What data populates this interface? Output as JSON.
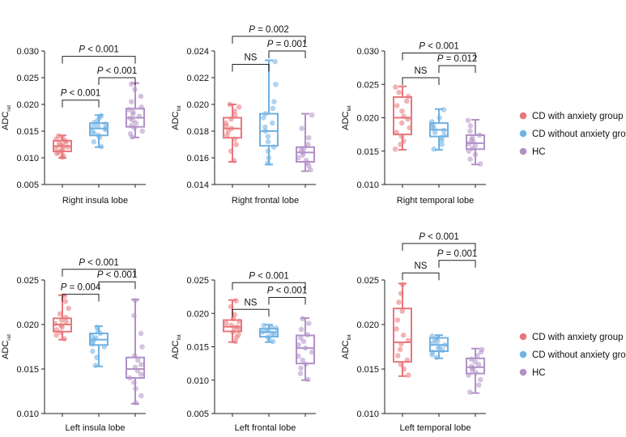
{
  "colors": {
    "anxiety": "#e8777a",
    "no_anxiety": "#6fb1e3",
    "hc": "#b291c6",
    "axis": "#222222"
  },
  "legend": {
    "entries": [
      {
        "label": "CD with anxiety group",
        "color": "#e8777a"
      },
      {
        "label": "CD without anxiety group",
        "color": "#6fb1e3"
      },
      {
        "label": "HC",
        "color": "#b291c6"
      }
    ]
  },
  "chart_data": [
    {
      "type": "box",
      "xlabel": "Right insula lobe",
      "ylabel": "ADC",
      "ylabel_sub": "ret",
      "ylim": [
        0.005,
        0.03
      ],
      "yticks": [
        "0.005",
        "0.010",
        "0.015",
        "0.020",
        "0.025",
        "0.030"
      ],
      "groups": [
        {
          "name": "CD with anxiety group",
          "min": 0.01,
          "q1": 0.0112,
          "median": 0.0122,
          "q3": 0.0132,
          "max": 0.0142,
          "points": [
            0.0101,
            0.0104,
            0.0108,
            0.011,
            0.0113,
            0.0115,
            0.0118,
            0.012,
            0.0122,
            0.0124,
            0.0127,
            0.013,
            0.0132,
            0.0135,
            0.0138,
            0.0141
          ]
        },
        {
          "name": "CD without anxiety group",
          "min": 0.012,
          "q1": 0.0142,
          "median": 0.0155,
          "q3": 0.0165,
          "max": 0.018,
          "points": [
            0.0121,
            0.013,
            0.0138,
            0.0142,
            0.0146,
            0.015,
            0.0153,
            0.0155,
            0.0158,
            0.016,
            0.0163,
            0.0166,
            0.017,
            0.0175,
            0.0179
          ]
        },
        {
          "name": "HC",
          "min": 0.0138,
          "q1": 0.0158,
          "median": 0.0175,
          "q3": 0.0192,
          "max": 0.024,
          "points": [
            0.0139,
            0.0145,
            0.015,
            0.0156,
            0.016,
            0.0165,
            0.017,
            0.0174,
            0.0178,
            0.0182,
            0.0186,
            0.019,
            0.0195,
            0.0205,
            0.0215,
            0.0228,
            0.0238
          ]
        }
      ],
      "brackets": [
        {
          "from": 0,
          "to": 1,
          "y": 0.0208,
          "label": "P < 0.001"
        },
        {
          "from": 1,
          "to": 2,
          "y": 0.025,
          "label": "P < 0.001"
        },
        {
          "from": 0,
          "to": 2,
          "y": 0.029,
          "label": "P < 0.001"
        }
      ]
    },
    {
      "type": "box",
      "xlabel": "Right frontal lobe",
      "ylabel": "ADC",
      "ylabel_sub": "fot",
      "ylim": [
        0.014,
        0.024
      ],
      "yticks": [
        "0.014",
        "0.016",
        "0.018",
        "0.020",
        "0.022",
        "0.024"
      ],
      "groups": [
        {
          "name": "CD with anxiety group",
          "min": 0.0157,
          "q1": 0.0175,
          "median": 0.0182,
          "q3": 0.019,
          "max": 0.02,
          "points": [
            0.0158,
            0.0165,
            0.017,
            0.0174,
            0.0177,
            0.018,
            0.0182,
            0.0184,
            0.0186,
            0.0189,
            0.0192,
            0.0195,
            0.0198,
            0.02
          ]
        },
        {
          "name": "CD without anxiety group",
          "min": 0.0155,
          "q1": 0.0169,
          "median": 0.018,
          "q3": 0.0193,
          "max": 0.0233,
          "points": [
            0.0156,
            0.016,
            0.0165,
            0.0168,
            0.0172,
            0.0176,
            0.018,
            0.0183,
            0.0186,
            0.019,
            0.0193,
            0.0197,
            0.0202,
            0.0215,
            0.0232
          ]
        },
        {
          "name": "HC",
          "min": 0.015,
          "q1": 0.0157,
          "median": 0.0164,
          "q3": 0.0168,
          "max": 0.0193,
          "points": [
            0.0151,
            0.0154,
            0.0156,
            0.0158,
            0.016,
            0.0162,
            0.0164,
            0.0166,
            0.0167,
            0.017,
            0.0175,
            0.0182,
            0.0192
          ]
        }
      ],
      "brackets": [
        {
          "from": 0,
          "to": 1,
          "y": 0.023,
          "label": "NS"
        },
        {
          "from": 1,
          "to": 2,
          "y": 0.024,
          "label": "P = 0.001"
        },
        {
          "from": 0,
          "to": 2,
          "y": 0.0251,
          "label": "P = 0.002"
        }
      ]
    },
    {
      "type": "box",
      "xlabel": "Right temporal lobe",
      "ylabel": "ADC",
      "ylabel_sub": "tet",
      "ylim": [
        0.01,
        0.03
      ],
      "yticks": [
        "0.010",
        "0.015",
        "0.020",
        "0.025",
        "0.030"
      ],
      "groups": [
        {
          "name": "CD with anxiety group",
          "min": 0.0152,
          "q1": 0.0175,
          "median": 0.02,
          "q3": 0.0231,
          "max": 0.0247,
          "points": [
            0.0153,
            0.016,
            0.0165,
            0.0172,
            0.0178,
            0.0185,
            0.0192,
            0.0198,
            0.0202,
            0.021,
            0.0218,
            0.0225,
            0.0232,
            0.0238,
            0.0246
          ]
        },
        {
          "name": "CD without anxiety group",
          "min": 0.0152,
          "q1": 0.0172,
          "median": 0.0182,
          "q3": 0.0192,
          "max": 0.0213,
          "points": [
            0.0153,
            0.016,
            0.0166,
            0.017,
            0.0174,
            0.0178,
            0.0181,
            0.0184,
            0.0187,
            0.019,
            0.0194,
            0.02,
            0.0212
          ]
        },
        {
          "name": "HC",
          "min": 0.013,
          "q1": 0.0153,
          "median": 0.0162,
          "q3": 0.0174,
          "max": 0.0197,
          "points": [
            0.0131,
            0.0138,
            0.0145,
            0.015,
            0.0154,
            0.0158,
            0.0161,
            0.0164,
            0.0167,
            0.017,
            0.0174,
            0.018,
            0.0188,
            0.0196
          ]
        }
      ],
      "brackets": [
        {
          "from": 0,
          "to": 1,
          "y": 0.026,
          "label": "NS"
        },
        {
          "from": 1,
          "to": 2,
          "y": 0.0278,
          "label": "P = 0.012"
        },
        {
          "from": 0,
          "to": 2,
          "y": 0.0297,
          "label": "P < 0.001"
        }
      ]
    },
    {
      "type": "box",
      "xlabel": "Left insula lobe",
      "ylabel": "ADC",
      "ylabel_sub": "ret",
      "ylim": [
        0.01,
        0.025
      ],
      "yticks": [
        "0.010",
        "0.015",
        "0.020",
        "0.025"
      ],
      "groups": [
        {
          "name": "CD with anxiety group",
          "min": 0.0183,
          "q1": 0.0192,
          "median": 0.02,
          "q3": 0.0207,
          "max": 0.0233,
          "points": [
            0.0184,
            0.0188,
            0.0191,
            0.0194,
            0.0197,
            0.0199,
            0.0201,
            0.0203,
            0.0205,
            0.0208,
            0.0212,
            0.0218,
            0.0226,
            0.0232
          ]
        },
        {
          "name": "CD without anxiety group",
          "min": 0.0153,
          "q1": 0.0177,
          "median": 0.0183,
          "q3": 0.019,
          "max": 0.0198,
          "points": [
            0.0154,
            0.0163,
            0.017,
            0.0175,
            0.0178,
            0.0181,
            0.0183,
            0.0185,
            0.0187,
            0.019,
            0.0193,
            0.0197
          ]
        },
        {
          "name": "HC",
          "min": 0.0111,
          "q1": 0.014,
          "median": 0.015,
          "q3": 0.0163,
          "max": 0.0228,
          "points": [
            0.0112,
            0.012,
            0.0128,
            0.0135,
            0.014,
            0.0144,
            0.0148,
            0.0152,
            0.0155,
            0.016,
            0.0165,
            0.0175,
            0.019,
            0.021,
            0.0227
          ]
        }
      ],
      "brackets": [
        {
          "from": 0,
          "to": 1,
          "y": 0.0234,
          "label": "P = 0.004"
        },
        {
          "from": 1,
          "to": 2,
          "y": 0.0248,
          "label": "P < 0.001"
        },
        {
          "from": 0,
          "to": 2,
          "y": 0.0262,
          "label": "P < 0.001"
        }
      ]
    },
    {
      "type": "box",
      "xlabel": "Left frontal lobe",
      "ylabel": "ADC",
      "ylabel_sub": "fot",
      "ylim": [
        0.005,
        0.025
      ],
      "yticks": [
        "0.005",
        "0.010",
        "0.015",
        "0.020",
        "0.025"
      ],
      "groups": [
        {
          "name": "CD with anxiety group",
          "min": 0.0157,
          "q1": 0.0173,
          "median": 0.018,
          "q3": 0.019,
          "max": 0.022,
          "points": [
            0.0158,
            0.0164,
            0.0168,
            0.0172,
            0.0175,
            0.0178,
            0.018,
            0.0182,
            0.0185,
            0.0188,
            0.0192,
            0.0198,
            0.021,
            0.0219
          ]
        },
        {
          "name": "CD without anxiety group",
          "min": 0.0157,
          "q1": 0.0165,
          "median": 0.0172,
          "q3": 0.0177,
          "max": 0.0183,
          "points": [
            0.0158,
            0.0162,
            0.0165,
            0.0168,
            0.017,
            0.0172,
            0.0174,
            0.0176,
            0.0178,
            0.018,
            0.0182
          ]
        },
        {
          "name": "HC",
          "min": 0.01,
          "q1": 0.0125,
          "median": 0.0148,
          "q3": 0.0167,
          "max": 0.0193,
          "points": [
            0.0101,
            0.011,
            0.0118,
            0.0124,
            0.013,
            0.0136,
            0.0142,
            0.0148,
            0.0153,
            0.0158,
            0.0163,
            0.0168,
            0.0176,
            0.0185,
            0.0192
          ]
        }
      ],
      "brackets": [
        {
          "from": 0,
          "to": 1,
          "y": 0.0206,
          "label": "NS"
        },
        {
          "from": 1,
          "to": 2,
          "y": 0.0224,
          "label": "P < 0.001"
        },
        {
          "from": 0,
          "to": 2,
          "y": 0.0246,
          "label": "P < 0.001"
        }
      ]
    },
    {
      "type": "box",
      "xlabel": "Left temporal lobe",
      "ylabel": "ADC",
      "ylabel_sub": "tot",
      "ylim": [
        0.01,
        0.025
      ],
      "yticks": [
        "0.010",
        "0.015",
        "0.020",
        "0.025"
      ],
      "groups": [
        {
          "name": "CD with anxiety group",
          "min": 0.0142,
          "q1": 0.0158,
          "median": 0.018,
          "q3": 0.0218,
          "max": 0.0246,
          "points": [
            0.0143,
            0.015,
            0.0155,
            0.016,
            0.0165,
            0.0172,
            0.0178,
            0.0182,
            0.0188,
            0.0195,
            0.0205,
            0.0215,
            0.0225,
            0.0235,
            0.0245
          ]
        },
        {
          "name": "CD without anxiety group",
          "min": 0.0162,
          "q1": 0.017,
          "median": 0.0177,
          "q3": 0.0185,
          "max": 0.0188,
          "points": [
            0.0163,
            0.0166,
            0.0169,
            0.0171,
            0.0173,
            0.0175,
            0.0177,
            0.0179,
            0.0181,
            0.0183,
            0.0185,
            0.0187
          ]
        },
        {
          "name": "HC",
          "min": 0.0123,
          "q1": 0.0145,
          "median": 0.0152,
          "q3": 0.0162,
          "max": 0.0173,
          "points": [
            0.0124,
            0.0132,
            0.0138,
            0.0143,
            0.0146,
            0.0149,
            0.0151,
            0.0153,
            0.0155,
            0.0158,
            0.0161,
            0.0165,
            0.0169,
            0.0172
          ]
        }
      ],
      "brackets": [
        {
          "from": 0,
          "to": 1,
          "y": 0.0258,
          "label": "NS"
        },
        {
          "from": 1,
          "to": 2,
          "y": 0.0272,
          "label": "P = 0.001"
        },
        {
          "from": 0,
          "to": 2,
          "y": 0.0291,
          "label": "P < 0.001"
        }
      ]
    }
  ]
}
